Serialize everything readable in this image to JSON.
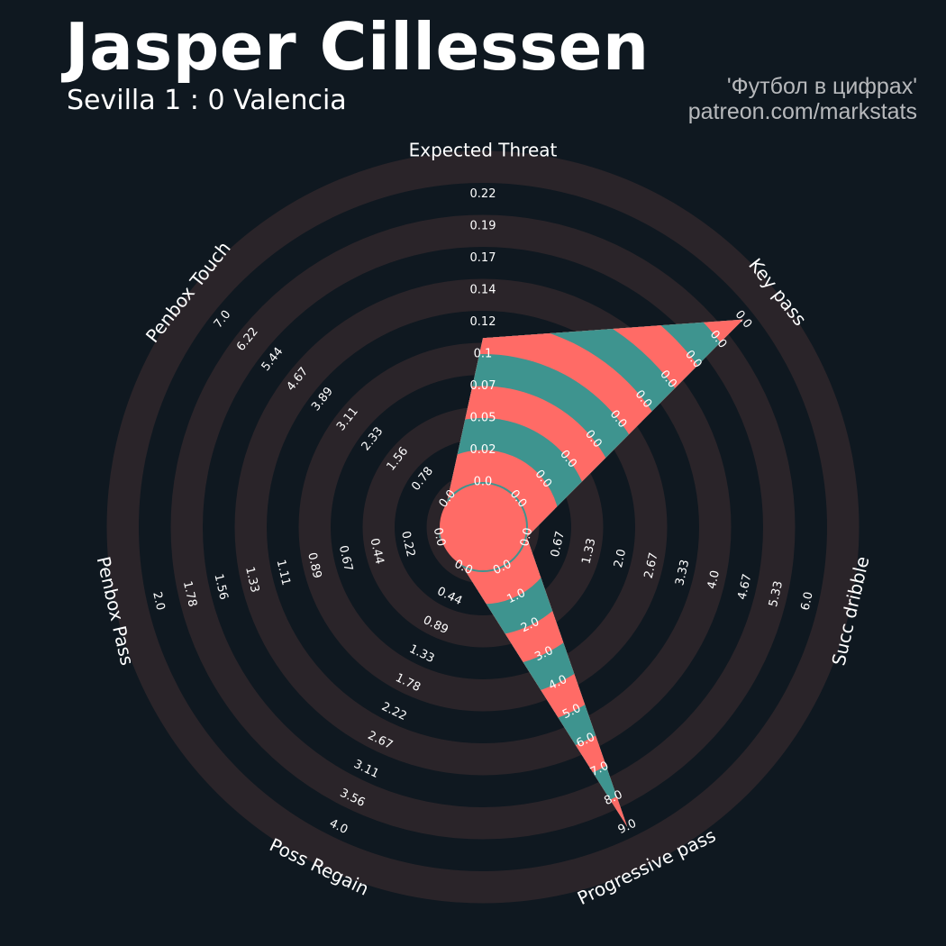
{
  "header": {
    "title": "Jasper Cillessen",
    "subtitle": "Sevilla 1 : 0 Valencia",
    "credit_line1": "'Футбол в цифрах'",
    "credit_line2": "patreon.com/markstats"
  },
  "colors": {
    "background": "#0f1820",
    "ring": "#2a2429",
    "teal": "#3e948f",
    "coral": "#ff6b66"
  },
  "chart_data": {
    "type": "radar",
    "params": [
      {
        "name": "Expected Threat",
        "value": 0.11,
        "ticks": [
          "0.0",
          "0.02",
          "0.05",
          "0.07",
          "0.1",
          "0.12",
          "0.14",
          "0.17",
          "0.19",
          "0.22"
        ]
      },
      {
        "name": "Key pass",
        "value": 0.0,
        "ticks": [
          "0.0",
          "0.0",
          "0.0",
          "0.0",
          "0.0",
          "0.0",
          "0.0",
          "0.0",
          "0.0",
          "0.0"
        ]
      },
      {
        "name": "Succ dribble",
        "value": 0.0,
        "ticks": [
          "0.0",
          "0.67",
          "1.33",
          "2.0",
          "2.67",
          "3.33",
          "4.0",
          "4.67",
          "5.33",
          "6.0"
        ]
      },
      {
        "name": "Progressive pass",
        "value": 9.0,
        "ticks": [
          "0.0",
          "1.0",
          "2.0",
          "3.0",
          "4.0",
          "5.0",
          "6.0",
          "7.0",
          "8.0",
          "9.0"
        ]
      },
      {
        "name": "Poss Regain",
        "value": 0.0,
        "ticks": [
          "0.0",
          "0.44",
          "0.89",
          "1.33",
          "1.78",
          "2.22",
          "2.67",
          "3.11",
          "3.56",
          "4.0"
        ]
      },
      {
        "name": "Penbox Pass",
        "value": 0.0,
        "ticks": [
          "0.0",
          "0.22",
          "0.44",
          "0.67",
          "0.89",
          "1.11",
          "1.33",
          "1.56",
          "1.78",
          "2.0"
        ]
      },
      {
        "name": "Penbox Touch",
        "value": 0.0,
        "ticks": [
          "0.0",
          "0.78",
          "1.56",
          "2.33",
          "3.11",
          "3.89",
          "4.67",
          "5.44",
          "6.22",
          "7.0"
        ]
      }
    ],
    "key_pass_display_fraction": 1.0
  }
}
